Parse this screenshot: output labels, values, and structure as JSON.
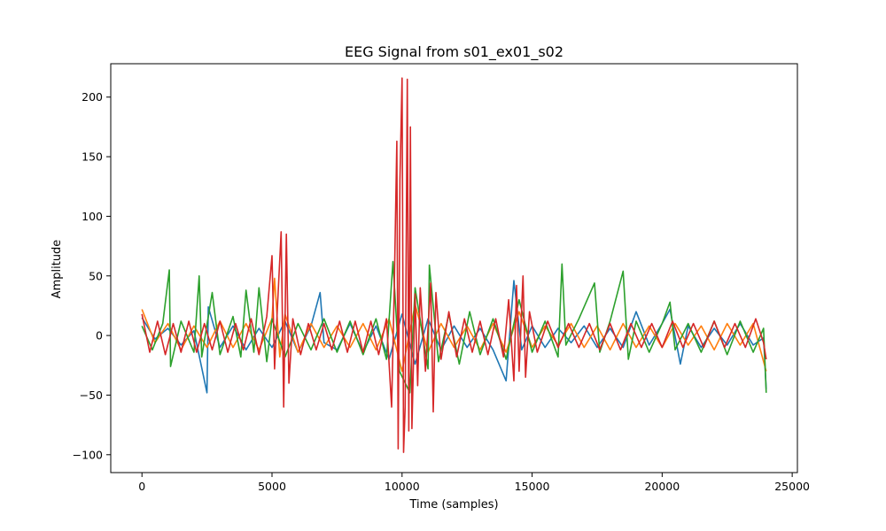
{
  "chart_data": {
    "type": "line",
    "title": "EEG Signal from s01_ex01_s02",
    "xlabel": "Time (samples)",
    "ylabel": "Amplitude",
    "xlim": [
      -1200,
      25200
    ],
    "ylim": [
      -115,
      228
    ],
    "x_ticks": [
      0,
      5000,
      10000,
      15000,
      20000,
      25000
    ],
    "x_tick_labels": [
      "0",
      "5000",
      "10000",
      "15000",
      "20000",
      "25000"
    ],
    "y_ticks": [
      -100,
      -50,
      0,
      50,
      100,
      150,
      200
    ],
    "y_tick_labels": [
      "−100",
      "−50",
      "0",
      "50",
      "100",
      "150",
      "200"
    ],
    "grid": false,
    "legend": "none",
    "series": [
      {
        "color": "#1f77b4",
        "points": [
          [
            0,
            15
          ],
          [
            500,
            -3
          ],
          [
            1000,
            6
          ],
          [
            1500,
            -8
          ],
          [
            2000,
            4
          ],
          [
            2500,
            -48
          ],
          [
            2550,
            24
          ],
          [
            3000,
            -10
          ],
          [
            3500,
            8
          ],
          [
            4000,
            -12
          ],
          [
            4500,
            6
          ],
          [
            5000,
            -10
          ],
          [
            5500,
            12
          ],
          [
            6000,
            -14
          ],
          [
            6500,
            8
          ],
          [
            6850,
            36
          ],
          [
            7000,
            -6
          ],
          [
            7500,
            -12
          ],
          [
            8000,
            10
          ],
          [
            8500,
            -14
          ],
          [
            9000,
            8
          ],
          [
            9500,
            -20
          ],
          [
            10000,
            18
          ],
          [
            10500,
            -24
          ],
          [
            11000,
            14
          ],
          [
            11500,
            -12
          ],
          [
            12000,
            8
          ],
          [
            12500,
            -10
          ],
          [
            13000,
            6
          ],
          [
            13500,
            -12
          ],
          [
            14000,
            -38
          ],
          [
            14300,
            46
          ],
          [
            14600,
            -12
          ],
          [
            15000,
            8
          ],
          [
            15500,
            -10
          ],
          [
            16000,
            6
          ],
          [
            16500,
            -6
          ],
          [
            17000,
            8
          ],
          [
            17500,
            -10
          ],
          [
            18000,
            6
          ],
          [
            18500,
            -10
          ],
          [
            19000,
            20
          ],
          [
            19500,
            -8
          ],
          [
            20000,
            10
          ],
          [
            20300,
            22
          ],
          [
            20700,
            -24
          ],
          [
            21000,
            8
          ],
          [
            21500,
            -10
          ],
          [
            22000,
            6
          ],
          [
            22500,
            -8
          ],
          [
            23000,
            10
          ],
          [
            23500,
            -8
          ],
          [
            23900,
            -2
          ],
          [
            24000,
            -45
          ]
        ]
      },
      {
        "color": "#ff7f0e",
        "points": [
          [
            0,
            22
          ],
          [
            500,
            -6
          ],
          [
            1000,
            10
          ],
          [
            1500,
            -12
          ],
          [
            2000,
            8
          ],
          [
            2500,
            -10
          ],
          [
            3000,
            12
          ],
          [
            3500,
            -10
          ],
          [
            4000,
            10
          ],
          [
            4500,
            -12
          ],
          [
            5000,
            14
          ],
          [
            5100,
            48
          ],
          [
            5300,
            -18
          ],
          [
            5500,
            18
          ],
          [
            6000,
            -14
          ],
          [
            6500,
            10
          ],
          [
            7000,
            -10
          ],
          [
            7500,
            8
          ],
          [
            8000,
            -10
          ],
          [
            8500,
            10
          ],
          [
            9000,
            -12
          ],
          [
            9500,
            14
          ],
          [
            10000,
            -30
          ],
          [
            10500,
            26
          ],
          [
            11000,
            -14
          ],
          [
            11500,
            10
          ],
          [
            12000,
            -10
          ],
          [
            12500,
            8
          ],
          [
            13000,
            -12
          ],
          [
            13500,
            10
          ],
          [
            14000,
            -14
          ],
          [
            14500,
            20
          ],
          [
            15000,
            -10
          ],
          [
            15500,
            8
          ],
          [
            16000,
            -8
          ],
          [
            16500,
            10
          ],
          [
            17000,
            -10
          ],
          [
            17500,
            8
          ],
          [
            18000,
            -12
          ],
          [
            18500,
            10
          ],
          [
            19000,
            -10
          ],
          [
            19500,
            8
          ],
          [
            20000,
            -10
          ],
          [
            20500,
            10
          ],
          [
            21000,
            -8
          ],
          [
            21500,
            8
          ],
          [
            22000,
            -12
          ],
          [
            22500,
            10
          ],
          [
            23000,
            -8
          ],
          [
            23500,
            10
          ],
          [
            24000,
            -30
          ]
        ]
      },
      {
        "color": "#2ca02c",
        "points": [
          [
            0,
            8
          ],
          [
            400,
            -12
          ],
          [
            800,
            10
          ],
          [
            1050,
            55
          ],
          [
            1100,
            -26
          ],
          [
            1500,
            12
          ],
          [
            2000,
            -14
          ],
          [
            2200,
            50
          ],
          [
            2300,
            -18
          ],
          [
            2700,
            36
          ],
          [
            3000,
            -16
          ],
          [
            3500,
            16
          ],
          [
            3800,
            -18
          ],
          [
            4000,
            38
          ],
          [
            4300,
            -14
          ],
          [
            4500,
            40
          ],
          [
            4800,
            -22
          ],
          [
            5000,
            14
          ],
          [
            5500,
            -18
          ],
          [
            6000,
            10
          ],
          [
            6500,
            -12
          ],
          [
            7000,
            14
          ],
          [
            7500,
            -14
          ],
          [
            8000,
            12
          ],
          [
            8500,
            -16
          ],
          [
            9000,
            14
          ],
          [
            9400,
            -20
          ],
          [
            9650,
            62
          ],
          [
            9900,
            -30
          ],
          [
            10300,
            -48
          ],
          [
            10500,
            40
          ],
          [
            11000,
            -28
          ],
          [
            11050,
            59
          ],
          [
            11400,
            -22
          ],
          [
            11800,
            18
          ],
          [
            12200,
            -24
          ],
          [
            12600,
            20
          ],
          [
            13000,
            -16
          ],
          [
            13500,
            14
          ],
          [
            14000,
            -20
          ],
          [
            14500,
            30
          ],
          [
            15000,
            -14
          ],
          [
            15500,
            12
          ],
          [
            16000,
            -18
          ],
          [
            16150,
            60
          ],
          [
            16300,
            -8
          ],
          [
            16800,
            14
          ],
          [
            17400,
            44
          ],
          [
            17600,
            -14
          ],
          [
            18000,
            12
          ],
          [
            18500,
            54
          ],
          [
            18700,
            -20
          ],
          [
            19000,
            12
          ],
          [
            19500,
            -14
          ],
          [
            20000,
            10
          ],
          [
            20300,
            28
          ],
          [
            20500,
            -12
          ],
          [
            21000,
            10
          ],
          [
            21500,
            -14
          ],
          [
            22000,
            12
          ],
          [
            22500,
            -16
          ],
          [
            23000,
            12
          ],
          [
            23500,
            -14
          ],
          [
            23900,
            6
          ],
          [
            24000,
            -48
          ]
        ]
      },
      {
        "color": "#d62728",
        "points": [
          [
            0,
            18
          ],
          [
            300,
            -14
          ],
          [
            600,
            12
          ],
          [
            900,
            -16
          ],
          [
            1200,
            10
          ],
          [
            1500,
            -14
          ],
          [
            1800,
            12
          ],
          [
            2100,
            -14
          ],
          [
            2400,
            10
          ],
          [
            2700,
            -12
          ],
          [
            3000,
            12
          ],
          [
            3300,
            -14
          ],
          [
            3600,
            10
          ],
          [
            3900,
            -12
          ],
          [
            4200,
            14
          ],
          [
            4500,
            -16
          ],
          [
            4800,
            16
          ],
          [
            5000,
            67
          ],
          [
            5100,
            -28
          ],
          [
            5200,
            20
          ],
          [
            5350,
            87
          ],
          [
            5450,
            -60
          ],
          [
            5550,
            85
          ],
          [
            5650,
            -40
          ],
          [
            5800,
            14
          ],
          [
            6100,
            -16
          ],
          [
            6400,
            10
          ],
          [
            6700,
            -12
          ],
          [
            7000,
            10
          ],
          [
            7300,
            -12
          ],
          [
            7600,
            12
          ],
          [
            7900,
            -14
          ],
          [
            8200,
            12
          ],
          [
            8500,
            -14
          ],
          [
            8800,
            12
          ],
          [
            9100,
            -16
          ],
          [
            9400,
            14
          ],
          [
            9600,
            -60
          ],
          [
            9700,
            40
          ],
          [
            9800,
            163
          ],
          [
            9850,
            -95
          ],
          [
            9920,
            130
          ],
          [
            10000,
            216
          ],
          [
            10060,
            -98
          ],
          [
            10120,
            -60
          ],
          [
            10200,
            215
          ],
          [
            10260,
            -80
          ],
          [
            10320,
            175
          ],
          [
            10380,
            -78
          ],
          [
            10500,
            35
          ],
          [
            10600,
            -42
          ],
          [
            10700,
            40
          ],
          [
            10900,
            -30
          ],
          [
            11100,
            44
          ],
          [
            11200,
            -64
          ],
          [
            11300,
            36
          ],
          [
            11500,
            -20
          ],
          [
            11800,
            20
          ],
          [
            12100,
            -18
          ],
          [
            12400,
            14
          ],
          [
            12700,
            -14
          ],
          [
            13000,
            12
          ],
          [
            13300,
            -16
          ],
          [
            13600,
            14
          ],
          [
            13900,
            -18
          ],
          [
            14100,
            30
          ],
          [
            14300,
            -38
          ],
          [
            14400,
            42
          ],
          [
            14500,
            -30
          ],
          [
            14650,
            50
          ],
          [
            14750,
            -35
          ],
          [
            14900,
            20
          ],
          [
            15200,
            -14
          ],
          [
            15600,
            12
          ],
          [
            16000,
            -10
          ],
          [
            16400,
            10
          ],
          [
            16800,
            -10
          ],
          [
            17200,
            10
          ],
          [
            17600,
            -12
          ],
          [
            18000,
            10
          ],
          [
            18400,
            -12
          ],
          [
            18800,
            10
          ],
          [
            19200,
            -10
          ],
          [
            19600,
            10
          ],
          [
            20000,
            -10
          ],
          [
            20400,
            12
          ],
          [
            20800,
            -10
          ],
          [
            21200,
            10
          ],
          [
            21600,
            -10
          ],
          [
            22000,
            12
          ],
          [
            22400,
            -10
          ],
          [
            22800,
            10
          ],
          [
            23200,
            -10
          ],
          [
            23600,
            14
          ],
          [
            23900,
            -6
          ],
          [
            24000,
            -20
          ]
        ]
      }
    ]
  }
}
